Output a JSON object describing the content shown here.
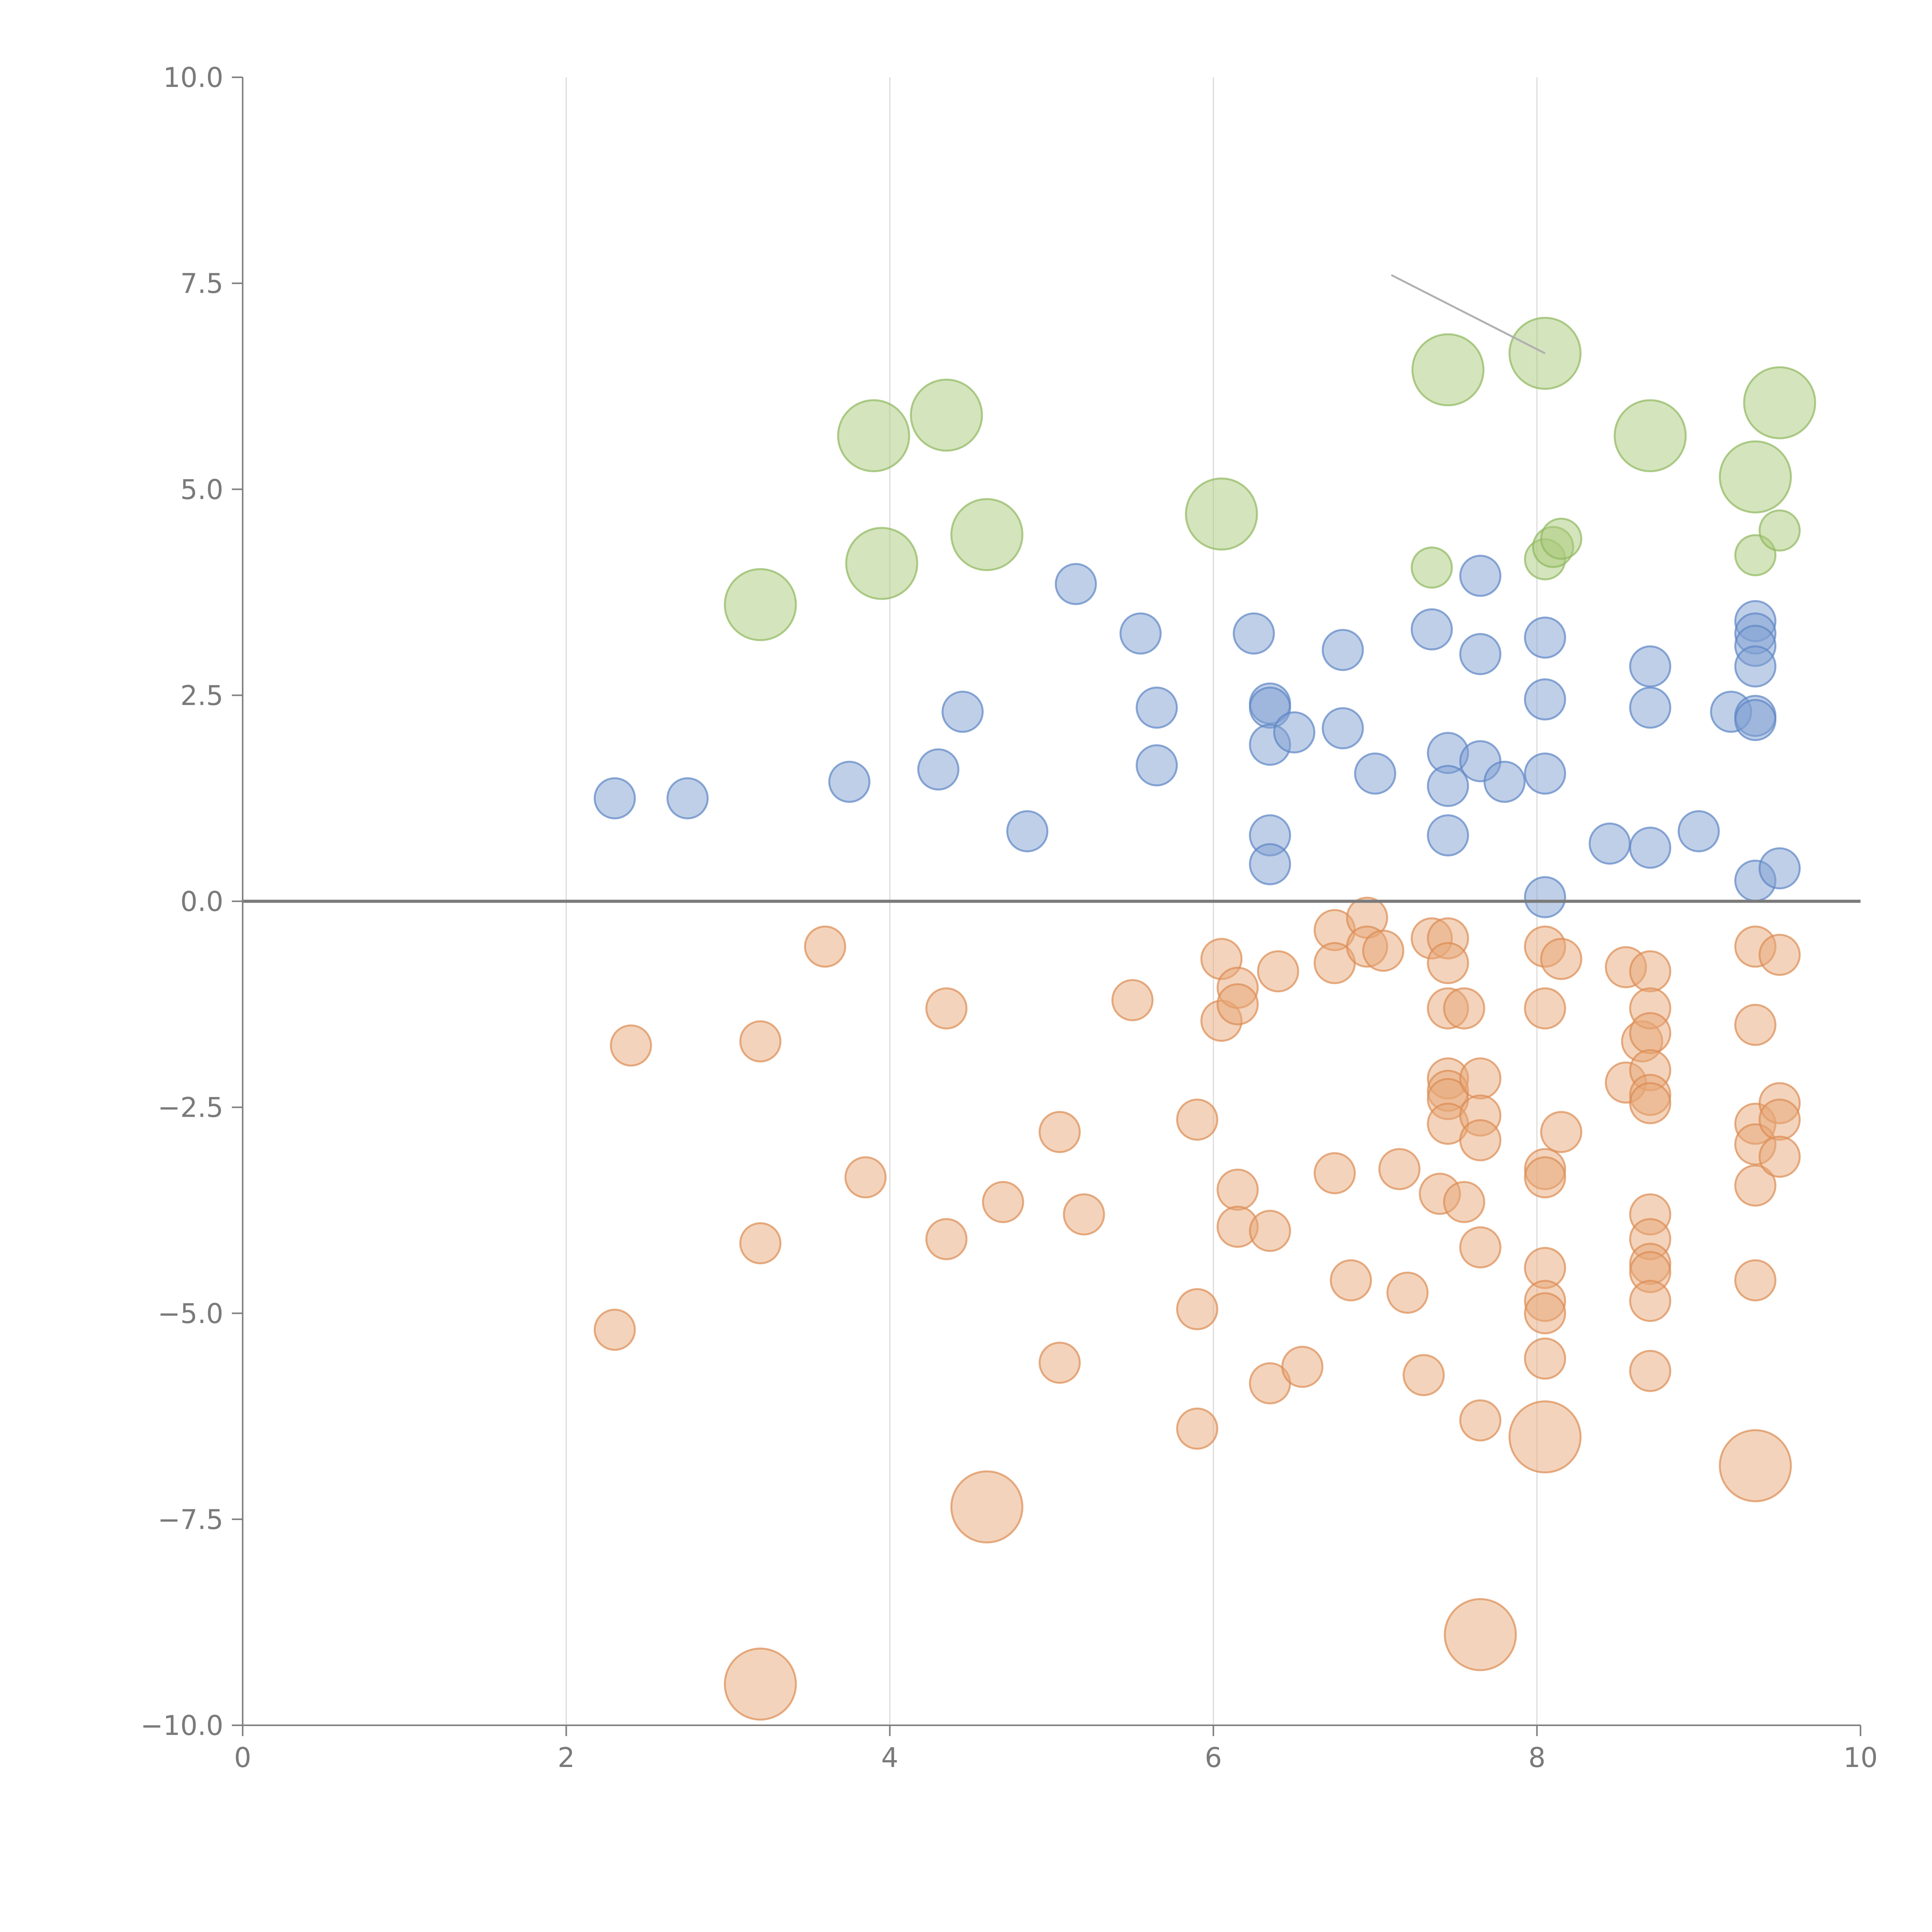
{
  "chart_data": {
    "type": "scatter",
    "title": "",
    "xlabel": "",
    "ylabel": "",
    "xlim": [
      0,
      10
    ],
    "ylim": [
      -10,
      10
    ],
    "x_ticks": [
      0,
      2,
      4,
      6,
      8,
      10
    ],
    "x_tick_labels": [
      "0",
      "2",
      "4",
      "6",
      "8",
      "10"
    ],
    "y_ticks": [
      10,
      7.5,
      5,
      2.5,
      0,
      -2.5,
      -5,
      -7.5,
      -10
    ],
    "y_tick_labels": [
      "10.0",
      "7.5",
      "5.0",
      "2.5",
      "0.0",
      "−2.5",
      "−5.0",
      "−7.5",
      "−10.0"
    ],
    "vertical_gridlines": [
      2,
      4,
      6,
      8
    ],
    "reference_line_y": 0,
    "annotation_line": {
      "x": [
        7.1,
        8.05
      ],
      "y": [
        7.6,
        6.65
      ]
    },
    "series": [
      {
        "name": "green",
        "color": "#a9c97a",
        "stroke": "#8fb85e",
        "points": [
          [
            3.2,
            3.6,
            2
          ],
          [
            3.9,
            5.65,
            2
          ],
          [
            3.95,
            4.1,
            2
          ],
          [
            4.35,
            5.9,
            2
          ],
          [
            4.6,
            4.45,
            2
          ],
          [
            6.05,
            4.7,
            2
          ],
          [
            7.45,
            6.45,
            2
          ],
          [
            8.05,
            6.65,
            2
          ],
          [
            8.7,
            5.65,
            2
          ],
          [
            9.35,
            5.15,
            2
          ],
          [
            9.5,
            6.05,
            2
          ],
          [
            7.35,
            4.05,
            1
          ],
          [
            8.05,
            4.15,
            1
          ],
          [
            8.1,
            4.3,
            1
          ],
          [
            8.15,
            4.4,
            1
          ],
          [
            9.35,
            4.2,
            1
          ],
          [
            9.5,
            4.5,
            1
          ]
        ]
      },
      {
        "name": "blue",
        "color": "#7f9fd2",
        "stroke": "#5c84c4",
        "points": [
          [
            2.3,
            1.25,
            1
          ],
          [
            2.75,
            1.25,
            1
          ],
          [
            3.75,
            1.45,
            1
          ],
          [
            4.3,
            1.6,
            1
          ],
          [
            4.45,
            2.3,
            1
          ],
          [
            4.85,
            0.85,
            1
          ],
          [
            5.15,
            3.85,
            1
          ],
          [
            5.55,
            3.25,
            1
          ],
          [
            5.65,
            2.35,
            1
          ],
          [
            5.65,
            1.65,
            1
          ],
          [
            6.25,
            3.25,
            1
          ],
          [
            6.35,
            2.4,
            1
          ],
          [
            6.35,
            2.35,
            1
          ],
          [
            6.35,
            1.9,
            1
          ],
          [
            6.35,
            0.8,
            1
          ],
          [
            6.35,
            0.45,
            1
          ],
          [
            6.5,
            2.05,
            1
          ],
          [
            6.8,
            3.05,
            1
          ],
          [
            6.8,
            2.1,
            1
          ],
          [
            7.0,
            1.55,
            1
          ],
          [
            7.35,
            3.3,
            1
          ],
          [
            7.45,
            1.8,
            1
          ],
          [
            7.45,
            1.4,
            1
          ],
          [
            7.45,
            0.8,
            1
          ],
          [
            7.65,
            3.95,
            1
          ],
          [
            7.65,
            3.0,
            1
          ],
          [
            7.65,
            1.7,
            1
          ],
          [
            7.8,
            1.45,
            1
          ],
          [
            8.05,
            3.2,
            1
          ],
          [
            8.05,
            2.45,
            1
          ],
          [
            8.05,
            1.55,
            1
          ],
          [
            8.05,
            0.05,
            1
          ],
          [
            8.45,
            0.7,
            1
          ],
          [
            8.7,
            2.85,
            1
          ],
          [
            8.7,
            2.35,
            1
          ],
          [
            8.7,
            0.65,
            1
          ],
          [
            9.0,
            0.85,
            1
          ],
          [
            9.2,
            2.3,
            1
          ],
          [
            9.35,
            3.4,
            1
          ],
          [
            9.35,
            3.25,
            1
          ],
          [
            9.35,
            3.1,
            1
          ],
          [
            9.35,
            2.85,
            1
          ],
          [
            9.35,
            2.25,
            1
          ],
          [
            9.35,
            2.2,
            1
          ],
          [
            9.35,
            0.25,
            1
          ],
          [
            9.5,
            0.4,
            1
          ]
        ]
      },
      {
        "name": "orange",
        "color": "#e8a878",
        "stroke": "#db8c52",
        "points": [
          [
            2.3,
            -5.2,
            1
          ],
          [
            2.4,
            -1.75,
            1
          ],
          [
            3.2,
            -1.7,
            1
          ],
          [
            3.2,
            -4.15,
            1
          ],
          [
            3.6,
            -0.55,
            1
          ],
          [
            3.85,
            -3.35,
            1
          ],
          [
            4.35,
            -1.3,
            1
          ],
          [
            4.35,
            -4.1,
            1
          ],
          [
            4.7,
            -3.65,
            1
          ],
          [
            5.05,
            -5.6,
            1
          ],
          [
            5.05,
            -2.8,
            1
          ],
          [
            5.2,
            -3.8,
            1
          ],
          [
            5.5,
            -1.2,
            1
          ],
          [
            5.9,
            -2.65,
            1
          ],
          [
            5.9,
            -4.95,
            1
          ],
          [
            5.9,
            -6.4,
            1
          ],
          [
            6.05,
            -0.7,
            1
          ],
          [
            6.05,
            -1.45,
            1
          ],
          [
            6.15,
            -1.05,
            1
          ],
          [
            6.15,
            -1.25,
            1
          ],
          [
            6.15,
            -3.5,
            1
          ],
          [
            6.15,
            -3.95,
            1
          ],
          [
            6.35,
            -4.0,
            1
          ],
          [
            6.35,
            -5.85,
            1
          ],
          [
            6.4,
            -0.85,
            1
          ],
          [
            6.55,
            -5.65,
            1
          ],
          [
            6.75,
            -0.35,
            1
          ],
          [
            6.75,
            -0.75,
            1
          ],
          [
            6.75,
            -3.3,
            1
          ],
          [
            6.85,
            -4.6,
            1
          ],
          [
            6.95,
            -0.2,
            1
          ],
          [
            6.95,
            -0.55,
            1
          ],
          [
            7.05,
            -0.6,
            1
          ],
          [
            7.15,
            -3.25,
            1
          ],
          [
            7.2,
            -4.75,
            1
          ],
          [
            7.3,
            -5.75,
            1
          ],
          [
            7.35,
            -0.45,
            1
          ],
          [
            7.4,
            -3.55,
            1
          ],
          [
            7.45,
            -0.45,
            1
          ],
          [
            7.45,
            -0.75,
            1
          ],
          [
            7.45,
            -1.3,
            1
          ],
          [
            7.45,
            -2.15,
            1
          ],
          [
            7.45,
            -2.3,
            1
          ],
          [
            7.45,
            -2.4,
            1
          ],
          [
            7.45,
            -2.7,
            1
          ],
          [
            7.55,
            -1.3,
            1
          ],
          [
            7.55,
            -3.65,
            1
          ],
          [
            7.65,
            -2.15,
            1
          ],
          [
            7.65,
            -2.6,
            1
          ],
          [
            7.65,
            -2.9,
            1
          ],
          [
            7.65,
            -4.2,
            1
          ],
          [
            7.65,
            -6.3,
            1
          ],
          [
            8.05,
            -0.55,
            1
          ],
          [
            8.05,
            -1.3,
            1
          ],
          [
            8.05,
            -3.25,
            1
          ],
          [
            8.05,
            -3.35,
            1
          ],
          [
            8.05,
            -4.45,
            1
          ],
          [
            8.05,
            -4.85,
            1
          ],
          [
            8.05,
            -5.0,
            1
          ],
          [
            8.05,
            -5.55,
            1
          ],
          [
            8.15,
            -0.7,
            1
          ],
          [
            8.15,
            -2.8,
            1
          ],
          [
            8.55,
            -0.8,
            1
          ],
          [
            8.55,
            -2.2,
            1
          ],
          [
            8.65,
            -1.7,
            1
          ],
          [
            8.7,
            -0.85,
            1
          ],
          [
            8.7,
            -1.3,
            1
          ],
          [
            8.7,
            -1.6,
            1
          ],
          [
            8.7,
            -2.05,
            1
          ],
          [
            8.7,
            -2.35,
            1
          ],
          [
            8.7,
            -2.45,
            1
          ],
          [
            8.7,
            -3.8,
            1
          ],
          [
            8.7,
            -4.1,
            1
          ],
          [
            8.7,
            -4.4,
            1
          ],
          [
            8.7,
            -4.5,
            1
          ],
          [
            8.7,
            -4.85,
            1
          ],
          [
            8.7,
            -5.7,
            1
          ],
          [
            9.35,
            -0.55,
            1
          ],
          [
            9.35,
            -1.5,
            1
          ],
          [
            9.35,
            -2.7,
            1
          ],
          [
            9.35,
            -2.95,
            1
          ],
          [
            9.35,
            -3.45,
            1
          ],
          [
            9.35,
            -4.6,
            1
          ],
          [
            9.5,
            -0.65,
            1
          ],
          [
            9.5,
            -2.45,
            1
          ],
          [
            9.5,
            -2.65,
            1
          ],
          [
            9.5,
            -3.1,
            1
          ],
          [
            3.2,
            -9.5,
            2
          ],
          [
            4.6,
            -7.35,
            2
          ],
          [
            7.65,
            -8.9,
            2
          ],
          [
            8.05,
            -6.5,
            2
          ],
          [
            9.35,
            -6.85,
            2
          ]
        ]
      }
    ]
  }
}
